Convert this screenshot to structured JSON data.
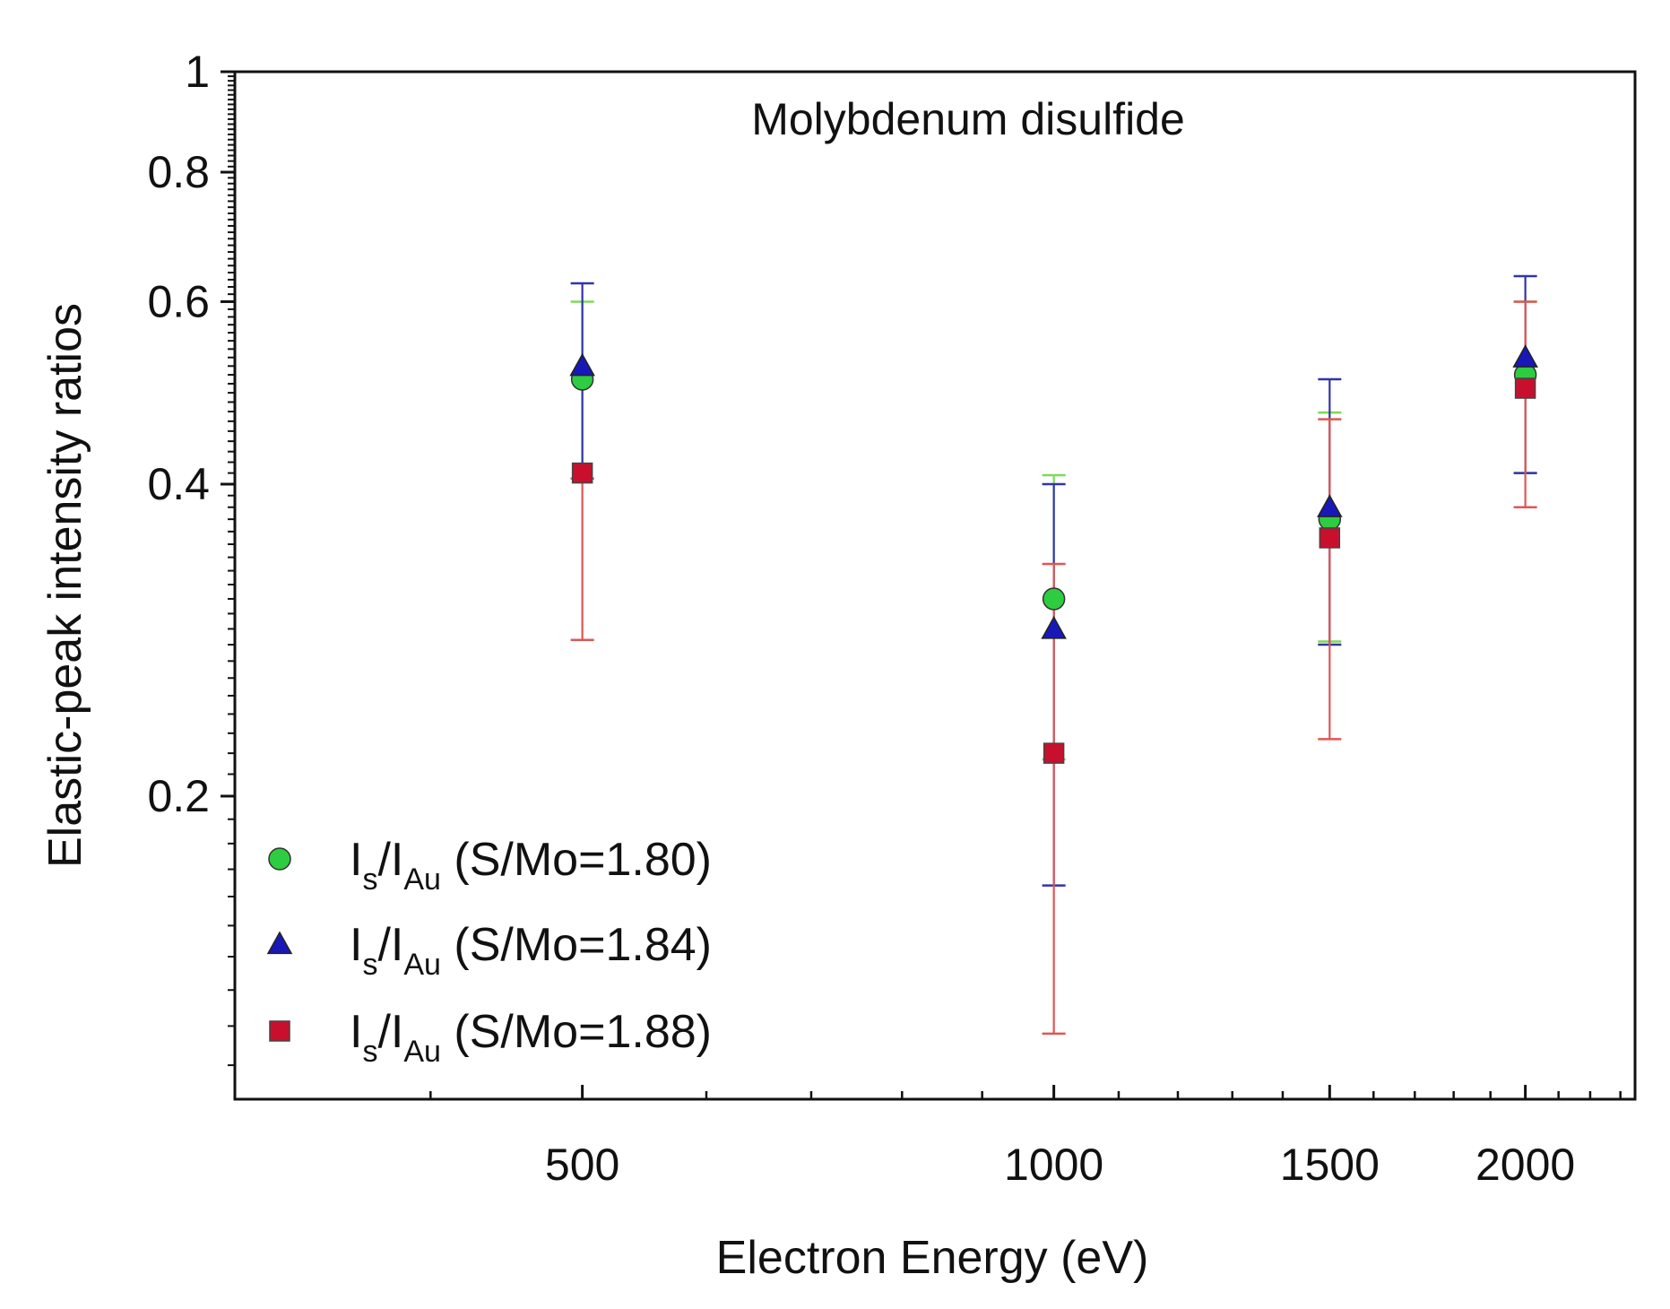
{
  "chart_data": {
    "type": "scatter",
    "title": "Molybdenum disulfide",
    "xlabel": "Electron Energy (eV)",
    "ylabel": "Elastic-peak intensity ratios",
    "xscale": "log",
    "yscale": "log",
    "xlim": [
      300,
      2350
    ],
    "ylim": [
      0.102,
      1.0
    ],
    "xticks": [
      500,
      1000,
      1500,
      2000
    ],
    "xtick_labels": [
      "500",
      "1000",
      "1500",
      "2000"
    ],
    "yticks": [
      0.2,
      0.4,
      0.6,
      0.8,
      1.0
    ],
    "ytick_labels": [
      "0.2",
      "0.4",
      "0.6",
      "0.8",
      "1"
    ],
    "legend_position": "bottom-left",
    "series": [
      {
        "name": "Is/IAu (S/Mo=1.80)",
        "legend": {
          "pre": "I",
          "sub1": "s",
          "mid": "/I",
          "sub2": "Au",
          "post": " (S/Mo=1.80)"
        },
        "marker": "circle",
        "color": "#2ecc40",
        "error_color": "#7ed957",
        "x": [
          500,
          1000,
          1500,
          2000
        ],
        "y": [
          0.505,
          0.31,
          0.37,
          0.51
        ],
        "err_low": [
          0.405,
          0.217,
          0.282,
          0.41
        ],
        "err_high": [
          0.6,
          0.408,
          0.469,
          0.6
        ]
      },
      {
        "name": "Is/IAu (S/Mo=1.84)",
        "legend": {
          "pre": "I",
          "sub1": "s",
          "mid": "/I",
          "sub2": "Au",
          "post": " (S/Mo=1.84)"
        },
        "marker": "triangle",
        "color": "#1818b8",
        "error_color": "#3333aa",
        "x": [
          500,
          1000,
          1500,
          2000
        ],
        "y": [
          0.52,
          0.29,
          0.38,
          0.53
        ],
        "err_low": [
          0.405,
          0.164,
          0.28,
          0.41
        ],
        "err_high": [
          0.625,
          0.4,
          0.505,
          0.635
        ]
      },
      {
        "name": "Is/IAu (S/Mo=1.88)",
        "legend": {
          "pre": "I",
          "sub1": "s",
          "mid": "/I",
          "sub2": "Au",
          "post": " (S/Mo=1.88)"
        },
        "marker": "square",
        "color": "#c8102e",
        "error_color": "#e05555",
        "x": [
          500,
          1000,
          1500,
          2000
        ],
        "y": [
          0.41,
          0.22,
          0.355,
          0.495
        ],
        "err_low": [
          0.283,
          0.118,
          0.227,
          0.38
        ],
        "err_high": [
          0.405,
          0.335,
          0.462,
          0.6
        ]
      }
    ]
  }
}
